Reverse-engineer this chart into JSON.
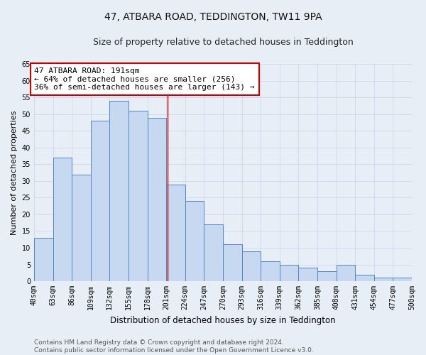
{
  "title": "47, ATBARA ROAD, TEDDINGTON, TW11 9PA",
  "subtitle": "Size of property relative to detached houses in Teddington",
  "xlabel": "Distribution of detached houses by size in Teddington",
  "ylabel": "Number of detached properties",
  "bar_values": [
    13,
    37,
    32,
    48,
    54,
    51,
    49,
    29,
    24,
    17,
    11,
    9,
    6,
    5,
    4,
    3,
    5,
    2,
    1,
    1
  ],
  "tick_labels": [
    "40sqm",
    "63sqm",
    "86sqm",
    "109sqm",
    "132sqm",
    "155sqm",
    "178sqm",
    "201sqm",
    "224sqm",
    "247sqm",
    "270sqm",
    "293sqm",
    "316sqm",
    "339sqm",
    "362sqm",
    "385sqm",
    "408sqm",
    "431sqm",
    "454sqm",
    "477sqm",
    "500sqm"
  ],
  "bar_color": "#c6d9f0",
  "bar_edge_color": "#4f86c6",
  "grid_color": "#c8d4e8",
  "background_color": "#e8eef6",
  "red_line_color": "#cc0000",
  "red_line_bin_index": 6,
  "annotation_text": "47 ATBARA ROAD: 191sqm\n← 64% of detached houses are smaller (256)\n36% of semi-detached houses are larger (143) →",
  "annotation_box_color": "#ffffff",
  "annotation_border_color": "#cc0000",
  "ylim": [
    0,
    65
  ],
  "yticks": [
    0,
    5,
    10,
    15,
    20,
    25,
    30,
    35,
    40,
    45,
    50,
    55,
    60,
    65
  ],
  "footnote": "Contains HM Land Registry data © Crown copyright and database right 2024.\nContains public sector information licensed under the Open Government Licence v3.0.",
  "title_fontsize": 10,
  "subtitle_fontsize": 9,
  "xlabel_fontsize": 8.5,
  "ylabel_fontsize": 8,
  "tick_fontsize": 7,
  "annotation_fontsize": 8,
  "footnote_fontsize": 6.5
}
